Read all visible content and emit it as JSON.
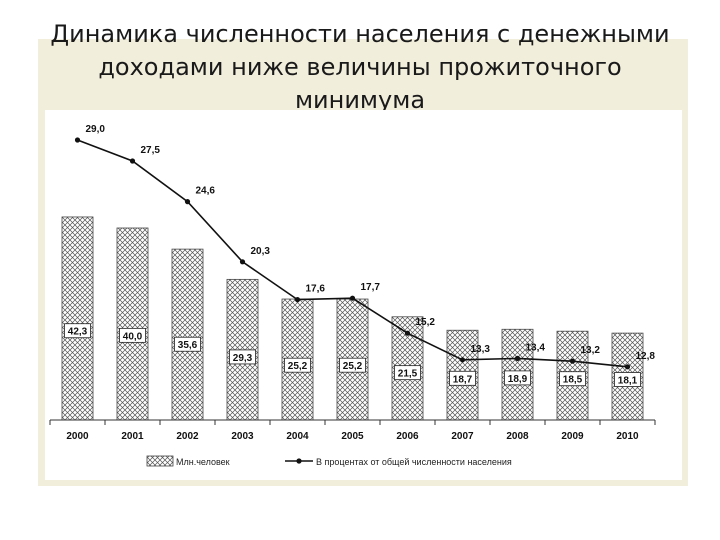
{
  "slide": {
    "title": "Динамика численности населения с денежными доходами ниже величины прожиточного минимума"
  },
  "chart_data": {
    "type": "bar",
    "categories": [
      "2000",
      "2001",
      "2002",
      "2003",
      "2004",
      "2005",
      "2006",
      "2007",
      "2008",
      "2009",
      "2010"
    ],
    "series": [
      {
        "name": "Млн.человек",
        "type": "bar",
        "values": [
          42.3,
          40.0,
          35.6,
          29.3,
          25.2,
          25.2,
          21.5,
          18.7,
          18.9,
          18.5,
          18.1
        ],
        "labels": [
          "42,3",
          "40,0",
          "35,6",
          "29,3",
          "25,2",
          "25,2",
          "21,5",
          "18,7",
          "18,9",
          "18,5",
          "18,1"
        ]
      },
      {
        "name": "В процентах от общей численности населения",
        "type": "line",
        "values": [
          29.0,
          27.5,
          24.6,
          20.3,
          17.6,
          17.7,
          15.2,
          13.3,
          13.4,
          13.2,
          12.8
        ],
        "labels": [
          "29,0",
          "27,5",
          "24,6",
          "20,3",
          "17,6",
          "17,7",
          "15,2",
          "13,3",
          "13,4",
          "13,2",
          "12,8"
        ]
      }
    ],
    "legend_position": "bottom",
    "grid": false,
    "colors": {
      "bar_fill": "#ffffff",
      "bar_hatch": "#555555",
      "line": "#111111"
    }
  }
}
